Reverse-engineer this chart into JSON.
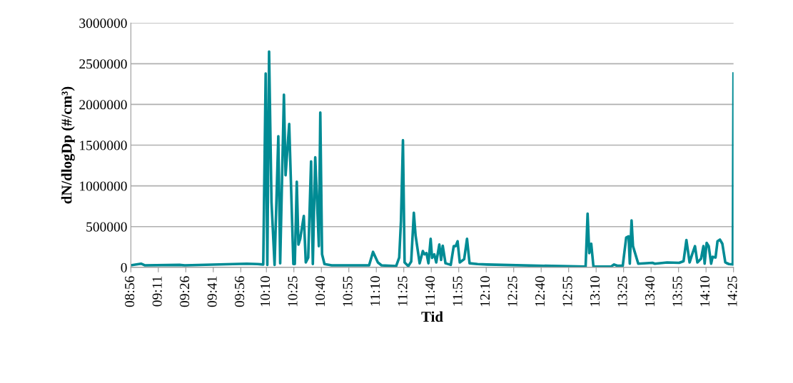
{
  "chart_data": {
    "type": "line",
    "xlabel": "Tid",
    "ylabel": "dN/dlogDp (#/cm³)",
    "x": [
      8.9333,
      9.026,
      9.059,
      9.378,
      9.424,
      9.988,
      10.087,
      10.138,
      10.16,
      10.175,
      10.191,
      10.213,
      10.241,
      10.275,
      10.292,
      10.326,
      10.341,
      10.374,
      10.412,
      10.425,
      10.443,
      10.458,
      10.474,
      10.507,
      10.525,
      10.547,
      10.573,
      10.589,
      10.611,
      10.644,
      10.657,
      10.673,
      10.695,
      10.761,
      11.101,
      11.137,
      11.181,
      11.214,
      11.347,
      11.375,
      11.391,
      11.409,
      11.424,
      11.458,
      11.484,
      11.508,
      11.524,
      11.561,
      11.59,
      11.605,
      11.623,
      11.641,
      11.661,
      11.674,
      11.694,
      11.712,
      11.74,
      11.756,
      11.771,
      11.796,
      11.844,
      11.871,
      11.889,
      11.906,
      11.926,
      11.966,
      11.992,
      12.015,
      12.088,
      12.176,
      12.64,
      13.071,
      13.089,
      13.104,
      13.122,
      13.142,
      13.303,
      13.33,
      13.358,
      13.409,
      13.44,
      13.462,
      13.473,
      13.489,
      13.502,
      13.55,
      13.679,
      13.701,
      13.812,
      13.922,
      13.962,
      13.988,
      14.017,
      14.044,
      14.066,
      14.088,
      14.121,
      14.143,
      14.154,
      14.172,
      14.191,
      14.213,
      14.227,
      14.253,
      14.271,
      14.293,
      14.315,
      14.342,
      14.375,
      14.41,
      14.4167
    ],
    "series": [
      {
        "color": "#008b94",
        "values": [
          25000,
          45000,
          25000,
          30000,
          25000,
          45000,
          40000,
          35000,
          2380000,
          30000,
          2650000,
          800000,
          30000,
          1610000,
          50000,
          2120000,
          1130000,
          1760000,
          40000,
          40000,
          1050000,
          280000,
          350000,
          630000,
          60000,
          120000,
          1300000,
          40000,
          1350000,
          260000,
          1900000,
          160000,
          40000,
          25000,
          25000,
          190000,
          60000,
          25000,
          15000,
          120000,
          570000,
          1560000,
          60000,
          15000,
          70000,
          670000,
          390000,
          50000,
          200000,
          160000,
          175000,
          50000,
          350000,
          115000,
          160000,
          60000,
          280000,
          90000,
          265000,
          50000,
          30000,
          260000,
          260000,
          320000,
          60000,
          100000,
          350000,
          50000,
          40000,
          35000,
          20000,
          10000,
          660000,
          175000,
          290000,
          10000,
          10000,
          35000,
          20000,
          20000,
          365000,
          380000,
          45000,
          575000,
          260000,
          45000,
          55000,
          45000,
          60000,
          55000,
          75000,
          335000,
          60000,
          175000,
          260000,
          60000,
          105000,
          260000,
          45000,
          300000,
          260000,
          45000,
          130000,
          120000,
          320000,
          340000,
          290000,
          60000,
          40000,
          35000,
          2380000
        ]
      }
    ],
    "xlim": [
      8.9333,
      14.4167
    ],
    "xticks": [
      {
        "value": 8.9333,
        "label": "08:56"
      },
      {
        "value": 9.1833,
        "label": "09:11"
      },
      {
        "value": 9.4333,
        "label": "09:26"
      },
      {
        "value": 9.6833,
        "label": "09:41"
      },
      {
        "value": 9.9333,
        "label": "09:56"
      },
      {
        "value": 10.1667,
        "label": "10:10"
      },
      {
        "value": 10.4167,
        "label": "10:25"
      },
      {
        "value": 10.6667,
        "label": "10:40"
      },
      {
        "value": 10.9167,
        "label": "10:55"
      },
      {
        "value": 11.1667,
        "label": "11:10"
      },
      {
        "value": 11.4167,
        "label": "11:25"
      },
      {
        "value": 11.6667,
        "label": "11:40"
      },
      {
        "value": 11.9167,
        "label": "11:55"
      },
      {
        "value": 12.1667,
        "label": "12:10"
      },
      {
        "value": 12.4167,
        "label": "12:25"
      },
      {
        "value": 12.6667,
        "label": "12:40"
      },
      {
        "value": 12.9167,
        "label": "12:55"
      },
      {
        "value": 13.1667,
        "label": "13:10"
      },
      {
        "value": 13.4167,
        "label": "13:25"
      },
      {
        "value": 13.6667,
        "label": "13:40"
      },
      {
        "value": 13.9167,
        "label": "13:55"
      },
      {
        "value": 14.1667,
        "label": "14:10"
      },
      {
        "value": 14.4167,
        "label": "14:25"
      }
    ],
    "ylim": [
      0,
      3000000
    ],
    "yticks": [
      0,
      500000,
      1000000,
      1500000,
      2000000,
      2500000,
      3000000
    ],
    "grid": "y",
    "marker": "none",
    "line_style": "solid"
  }
}
